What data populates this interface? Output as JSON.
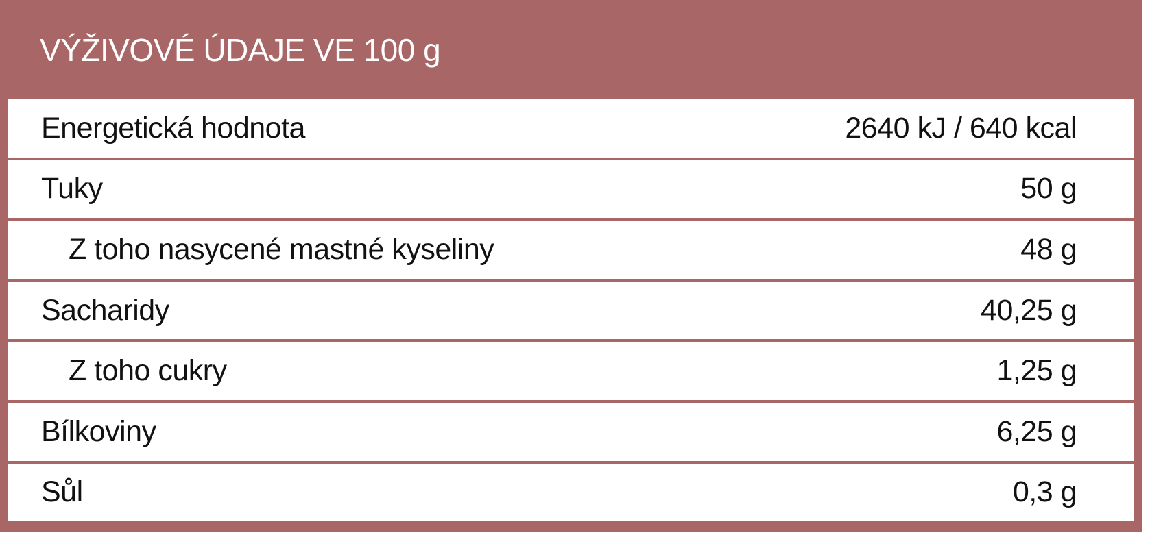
{
  "colors": {
    "accent": "#a86666"
  },
  "title": "VÝŽIVOVÉ ÚDAJE VE 100 g",
  "rows": [
    {
      "label": "Energetická hodnota",
      "value": "2640 kJ / 640 kcal",
      "indent": false
    },
    {
      "label": "Tuky",
      "value": "50 g",
      "indent": false
    },
    {
      "label": "Z toho nasycené mastné kyseliny",
      "value": "48 g",
      "indent": true
    },
    {
      "label": "Sacharidy",
      "value": "40,25 g",
      "indent": false
    },
    {
      "label": "Z toho cukry",
      "value": "1,25 g",
      "indent": true
    },
    {
      "label": "Bílkoviny",
      "value": "6,25 g",
      "indent": false
    },
    {
      "label": "Sůl",
      "value": "0,3 g",
      "indent": false
    }
  ]
}
